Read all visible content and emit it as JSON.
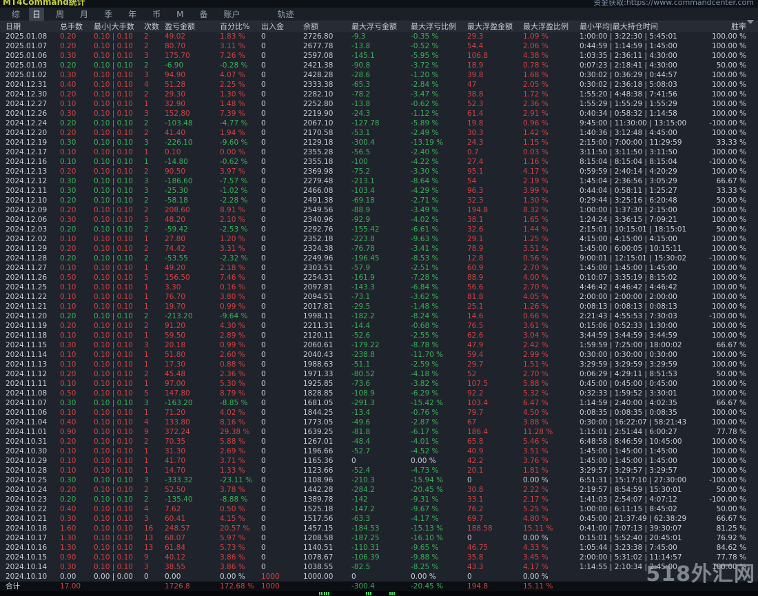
{
  "titlebar": {
    "app_title": "MT4Command统计",
    "data_link": "资金获取:https://www.commandcenter.com"
  },
  "tabs": {
    "items": [
      "综",
      "日",
      "周",
      "月",
      "季",
      "年",
      "币",
      "M",
      "备",
      "账户"
    ],
    "active": "日",
    "track_label": "轨迹"
  },
  "colors": {
    "profit_red": "#d24444",
    "loss_green": "#3bb159",
    "bar_green": "#3fd463"
  },
  "watermark": "518外汇网",
  "table": {
    "columns": [
      {
        "key": "date",
        "label": "日期"
      },
      {
        "key": "lots",
        "label": "总手数"
      },
      {
        "key": "minmax",
        "label": "最小|大手数"
      },
      {
        "key": "count",
        "label": "次数"
      },
      {
        "key": "pl",
        "label": "盈亏金额"
      },
      {
        "key": "pct",
        "label": "百分比%"
      },
      {
        "key": "dep",
        "label": "出入金"
      },
      {
        "key": "bal",
        "label": "余额"
      },
      {
        "key": "fla",
        "label": "最大浮亏金额"
      },
      {
        "key": "flp",
        "label": "最大浮亏比例"
      },
      {
        "key": "fpa",
        "label": "最大浮盈金额"
      },
      {
        "key": "fpp",
        "label": "最大浮盈比例"
      },
      {
        "key": "time",
        "label": "最小平均|最大持仓时间"
      },
      {
        "key": "win",
        "label": "胜率"
      }
    ],
    "rows": [
      [
        "2025.01.08",
        "0.20",
        "0.10 | 0.10",
        "2",
        "49.02",
        "1.83 %",
        "0",
        "2726.80",
        "-9.3",
        "-0.35 %",
        "29.3",
        "1.09 %",
        "1:00:00 | 3:22:30 | 5:45:01",
        "100.00 %"
      ],
      [
        "2025.01.07",
        "0.20",
        "0.10 | 0.10",
        "2",
        "80.70",
        "3.11 %",
        "0",
        "2677.78",
        "-13.8",
        "-0.52 %",
        "54.4",
        "2.06 %",
        "0:44:59 | 1:14:59 | 1:45:00",
        "100.00 %"
      ],
      [
        "2025.01.06",
        "0.30",
        "0.10 | 0.10",
        "3",
        "175.70",
        "7.26 %",
        "0",
        "2597.08",
        "-145.1",
        "-5.95 %",
        "106.8",
        "4.38 %",
        "1:03:35 | 2:36:11 | 4:30:00",
        "100.00 %"
      ],
      [
        "2025.01.03",
        "0.20",
        "0.10 | 0.10",
        "2",
        "-6.90",
        "-0.28 %",
        "0",
        "2421.38",
        "-90.8",
        "-3.72 %",
        "18.9",
        "0.78 %",
        "0:07:23 | 2:18:41 | 4:30:00",
        "50.00 %"
      ],
      [
        "2025.01.02",
        "0.30",
        "0.10 | 0.10",
        "3",
        "94.90",
        "4.07 %",
        "0",
        "2428.28",
        "-28.6",
        "-1.20 %",
        "39.8",
        "1.68 %",
        "0:30:02 | 0:36:29 | 0:44:57",
        "100.00 %"
      ],
      [
        "2024.12.31",
        "0.40",
        "0.10 | 0.10",
        "4",
        "51.28",
        "2.25 %",
        "0",
        "2333.38",
        "-65.3",
        "-2.84 %",
        "47",
        "2.05 %",
        "0:30:02 | 2:36:18 | 5:08:03",
        "100.00 %"
      ],
      [
        "2024.12.30",
        "0.20",
        "0.10 | 0.10",
        "2",
        "29.30",
        "1.30 %",
        "0",
        "2282.10",
        "-78.2",
        "-3.47 %",
        "38.8",
        "1.72 %",
        "1:55:20 | 4:48:38 | 7:41:56",
        "100.00 %"
      ],
      [
        "2024.12.27",
        "0.10",
        "0.10 | 0.10",
        "1",
        "32.90",
        "1.48 %",
        "0",
        "2252.80",
        "-13.8",
        "-0.62 %",
        "52.3",
        "2.36 %",
        "1:55:29 | 1:55:29 | 1:55:29",
        "100.00 %"
      ],
      [
        "2024.12.26",
        "0.30",
        "0.10 | 0.10",
        "3",
        "152.80",
        "7.39 %",
        "0",
        "2219.90",
        "-24.3",
        "-1.12 %",
        "61.4",
        "2.91 %",
        "0:40:34 | 0:58:32 | 1:14:58",
        "100.00 %"
      ],
      [
        "2024.12.24",
        "0.20",
        "0.10 | 0.10",
        "2",
        "-103.48",
        "-4.77 %",
        "0",
        "2067.10",
        "-127.78",
        "-5.89 %",
        "19.8",
        "0.96 %",
        "9:45:00 | 11:30:00 | 13:15:00",
        "-100.00 %"
      ],
      [
        "2024.12.20",
        "0.20",
        "0.10 | 0.10",
        "2",
        "41.40",
        "1.94 %",
        "0",
        "2170.58",
        "-53.1",
        "-2.49 %",
        "30.3",
        "1.42 %",
        "1:40:36 | 3:12:48 | 4:45:00",
        "100.00 %"
      ],
      [
        "2024.12.19",
        "0.30",
        "0.10 | 0.10",
        "3",
        "-226.10",
        "-9.60 %",
        "0",
        "2129.18",
        "-300.4",
        "-13.19 %",
        "24.3",
        "1.15 %",
        "2:15:00 | 7:00:00 | 11:29:59",
        "33.33 %"
      ],
      [
        "2024.12.17",
        "0.10",
        "0.10 | 0.10",
        "1",
        "0.10",
        "0.00 %",
        "0",
        "2355.28",
        "-56.5",
        "-2.40 %",
        "0.7",
        "0.03 %",
        "3:11:50 | 3:11:50 | 3:11:50",
        "100.00 %"
      ],
      [
        "2024.12.16",
        "0.10",
        "0.10 | 0.10",
        "1",
        "-14.80",
        "-0.62 %",
        "0",
        "2355.18",
        "-100",
        "-4.22 %",
        "27.4",
        "1.16 %",
        "8:15:04 | 8:15:04 | 8:15:04",
        "-100.00 %"
      ],
      [
        "2024.12.13",
        "0.20",
        "0.10 | 0.10",
        "2",
        "90.50",
        "3.97 %",
        "0",
        "2369.98",
        "-75.2",
        "-3.30 %",
        "95.1",
        "4.17 %",
        "0:59:59 | 2:40:14 | 4:20:29",
        "100.00 %"
      ],
      [
        "2024.12.12",
        "0.30",
        "0.10 | 0.10",
        "3",
        "-186.60",
        "-7.57 %",
        "0",
        "2279.48",
        "-213.1",
        "-8.64 %",
        "54",
        "2.19 %",
        "1:45:04 | 2:36:56 | 3:05:29",
        "66.67 %"
      ],
      [
        "2024.12.11",
        "0.30",
        "0.10 | 0.10",
        "3",
        "-25.30",
        "-1.02 %",
        "0",
        "2466.08",
        "-103.4",
        "-4.29 %",
        "96.3",
        "3.99 %",
        "0:44:04 | 0:58:11 | 1:25:27",
        "33.33 %"
      ],
      [
        "2024.12.10",
        "0.20",
        "0.10 | 0.10",
        "2",
        "-58.18",
        "-2.28 %",
        "0",
        "2491.38",
        "-69.18",
        "-2.71 %",
        "32.3",
        "1.30 %",
        "0:29:44 | 3:25:16 | 6:20:48",
        "50.00 %"
      ],
      [
        "2024.12.09",
        "0.20",
        "0.10 | 0.10",
        "2",
        "208.60",
        "8.91 %",
        "0",
        "2549.56",
        "-88.9",
        "-3.49 %",
        "194.8",
        "8.32 %",
        "1:00:00 | 1:37:30 | 2:15:00",
        "100.00 %"
      ],
      [
        "2024.12.06",
        "0.30",
        "0.10 | 0.10",
        "3",
        "48.20",
        "2.10 %",
        "0",
        "2340.96",
        "-92.9",
        "-4.02 %",
        "38.1",
        "1.65 %",
        "1:24:24 | 3:36:15 | 7:09:21",
        "100.00 %"
      ],
      [
        "2024.12.03",
        "0.20",
        "0.10 | 0.10",
        "2",
        "-59.42",
        "-2.53 %",
        "0",
        "2292.76",
        "-155.42",
        "-6.61 %",
        "32.6",
        "1.44 %",
        "2:15:01 | 10:15:01 | 18:15:01",
        "50.00 %"
      ],
      [
        "2024.12.02",
        "0.10",
        "0.10 | 0.10",
        "1",
        "27.80",
        "1.20 %",
        "0",
        "2352.18",
        "-223.8",
        "-9.63 %",
        "29.1",
        "1.25 %",
        "4:15:00 | 4:15:00 | 4:15:00",
        "100.00 %"
      ],
      [
        "2024.11.29",
        "0.20",
        "0.10 | 0.10",
        "2",
        "74.42",
        "3.31 %",
        "0",
        "2324.38",
        "-76.78",
        "-3.41 %",
        "78.9",
        "3.51 %",
        "1:45:00 | 6:00:05 | 10:15:11",
        "100.00 %"
      ],
      [
        "2024.11.28",
        "0.20",
        "0.10 | 0.10",
        "2",
        "-53.55",
        "-2.32 %",
        "0",
        "2249.96",
        "-196.45",
        "-8.53 %",
        "12.8",
        "0.56 %",
        "9:00:01 | 12:15:01 | 15:30:02",
        "-100.00 %"
      ],
      [
        "2024.11.27",
        "0.10",
        "0.10 | 0.10",
        "1",
        "49.20",
        "2.18 %",
        "0",
        "2303.51",
        "-57.9",
        "-2.51 %",
        "60.9",
        "2.70 %",
        "1:45:00 | 1:45:00 | 1:45:00",
        "100.00 %"
      ],
      [
        "2024.11.26",
        "0.50",
        "0.10 | 0.10",
        "5",
        "156.50",
        "7.46 %",
        "0",
        "2254.31",
        "-161.9",
        "-7.28 %",
        "88.9",
        "4.00 %",
        "0:10:07 | 3:35:19 | 8:15:02",
        "100.00 %"
      ],
      [
        "2024.11.25",
        "0.10",
        "0.10 | 0.10",
        "1",
        "3.30",
        "0.16 %",
        "0",
        "2097.81",
        "-143.3",
        "-6.84 %",
        "56.6",
        "2.70 %",
        "4:46:42 | 4:46:42 | 4:46:42",
        "100.00 %"
      ],
      [
        "2024.11.22",
        "0.10",
        "0.10 | 0.10",
        "1",
        "76.70",
        "3.80 %",
        "0",
        "2094.51",
        "-73.1",
        "-3.62 %",
        "81.8",
        "4.05 %",
        "2:00:00 | 2:00:00 | 2:00:00",
        "100.00 %"
      ],
      [
        "2024.11.21",
        "0.10",
        "0.10 | 0.10",
        "1",
        "19.70",
        "0.99 %",
        "0",
        "2017.81",
        "-29.5",
        "-1.48 %",
        "25.1",
        "1.26 %",
        "0:08:13 | 0:08:13 | 0:08:13",
        "100.00 %"
      ],
      [
        "2024.11.20",
        "0.20",
        "0.10 | 0.10",
        "2",
        "-213.20",
        "-9.64 %",
        "0",
        "1998.11",
        "-182.2",
        "-8.24 %",
        "14.6",
        "0.66 %",
        "2:21:43 | 4:55:53 | 7:30:03",
        "-100.00 %"
      ],
      [
        "2024.11.19",
        "0.20",
        "0.10 | 0.10",
        "2",
        "91.20",
        "4.30 %",
        "0",
        "2211.31",
        "-14.4",
        "-0.68 %",
        "76.5",
        "3.61 %",
        "0:15:06 | 0:52:33 | 1:30:00",
        "100.00 %"
      ],
      [
        "2024.11.18",
        "0.10",
        "0.10 | 0.10",
        "1",
        "59.50",
        "2.89 %",
        "0",
        "2120.11",
        "-52.6",
        "-2.55 %",
        "62.6",
        "3.04 %",
        "3:44:59 | 3:44:59 | 3:44:59",
        "100.00 %"
      ],
      [
        "2024.11.15",
        "0.30",
        "0.10 | 0.10",
        "3",
        "20.18",
        "0.99 %",
        "0",
        "2060.61",
        "-179.22",
        "-8.78 %",
        "47.9",
        "2.42 %",
        "1:59:59 | 7:25:00 | 18:00:02",
        "66.67 %"
      ],
      [
        "2024.11.14",
        "0.10",
        "0.10 | 0.10",
        "1",
        "51.80",
        "2.60 %",
        "0",
        "2040.43",
        "-238.8",
        "-11.70 %",
        "59.4",
        "2.99 %",
        "0:30:00 | 0:30:00 | 0:30:00",
        "100.00 %"
      ],
      [
        "2024.11.13",
        "0.10",
        "0.10 | 0.10",
        "1",
        "17.30",
        "0.88 %",
        "0",
        "1988.63",
        "-51.1",
        "-2.59 %",
        "29.7",
        "1.51 %",
        "3:29:59 | 3:29:59 | 3:29:59",
        "100.00 %"
      ],
      [
        "2024.11.12",
        "0.20",
        "0.10 | 0.10",
        "2",
        "45.48",
        "2.36 %",
        "0",
        "1971.33",
        "-80.52",
        "-4.18 %",
        "52",
        "2.70 %",
        "0:06:29 | 4:29:11 | 8:51:53",
        "50.00 %"
      ],
      [
        "2024.11.11",
        "0.10",
        "0.10 | 0.10",
        "1",
        "97.00",
        "5.30 %",
        "0",
        "1925.85",
        "-73.6",
        "-3.82 %",
        "107.5",
        "5.88 %",
        "0:45:00 | 0:45:00 | 0:45:00",
        "100.00 %"
      ],
      [
        "2024.11.08",
        "0.50",
        "0.10 | 0.10",
        "5",
        "147.80",
        "8.79 %",
        "0",
        "1828.85",
        "-108.9",
        "-6.29 %",
        "92.2",
        "5.32 %",
        "0:32:33 | 1:59:52 | 3:30:01",
        "100.00 %"
      ],
      [
        "2024.11.07",
        "0.30",
        "0.10 | 0.10",
        "3",
        "-163.20",
        "-8.85 %",
        "0",
        "1681.05",
        "-291.3",
        "-15.42 %",
        "103.4",
        "6.47 %",
        "1:14:59 | 2:40:00 | 4:02:35",
        "66.67 %"
      ],
      [
        "2024.11.06",
        "0.10",
        "0.10 | 0.10",
        "1",
        "71.20",
        "4.02 %",
        "0",
        "1844.25",
        "-13.4",
        "-0.76 %",
        "79.7",
        "4.50 %",
        "0:08:35 | 0:08:35 | 0:08:35",
        "100.00 %"
      ],
      [
        "2024.11.04",
        "0.40",
        "0.10 | 0.10",
        "4",
        "133.80",
        "8.16 %",
        "0",
        "1773.05",
        "-49.6",
        "-2.87 %",
        "67",
        "3.88 %",
        "0:30:00 | 16:22:07 | 58:21:43",
        "100.00 %"
      ],
      [
        "2024.11.01",
        "0.90",
        "0.10 | 0.10",
        "9",
        "372.24",
        "29.38 %",
        "0",
        "1639.25",
        "-81.8",
        "-6.17 %",
        "186.4",
        "11.28 %",
        "1:15:01 | 2:51:44 | 6:00:27",
        "77.78 %"
      ],
      [
        "2024.10.31",
        "0.20",
        "0.10 | 0.10",
        "2",
        "70.35",
        "5.88 %",
        "0",
        "1267.01",
        "-48.4",
        "-4.01 %",
        "65.8",
        "5.46 %",
        "6:48:58 | 8:46:59 | 10:45:00",
        "100.00 %"
      ],
      [
        "2024.10.30",
        "0.10",
        "0.10 | 0.10",
        "1",
        "31.30",
        "2.69 %",
        "0",
        "1196.66",
        "-52.7",
        "-4.52 %",
        "40.9",
        "3.51 %",
        "1:45:00 | 1:45:00 | 1:45:00",
        "100.00 %"
      ],
      [
        "2024.10.29",
        "0.10",
        "0.10 | 0.10",
        "1",
        "41.70",
        "3.71 %",
        "0",
        "1165.36",
        "0",
        "0.00 %",
        "42.2",
        "3.76 %",
        "1:45:00 | 1:45:00 | 1:45:00",
        "100.00 %"
      ],
      [
        "2024.10.28",
        "0.10",
        "0.10 | 0.10",
        "1",
        "14.70",
        "1.33 %",
        "0",
        "1123.66",
        "-52.4",
        "-4.73 %",
        "20.1",
        "1.81 %",
        "3:29:57 | 3:29:57 | 3:29:57",
        "100.00 %"
      ],
      [
        "2024.10.25",
        "0.30",
        "0.10 | 0.10",
        "3",
        "-333.32",
        "-23.11 %",
        "0",
        "1108.96",
        "-210.3",
        "-15.94 %",
        "0",
        "0.00 %",
        "6:51:31 | 15:17:10 | 27:30:00",
        "-100.00 %"
      ],
      [
        "2024.10.24",
        "0.20",
        "0.10 | 0.10",
        "2",
        "52.50",
        "3.78 %",
        "0",
        "1442.28",
        "-284.2",
        "-20.45 %",
        "30.8",
        "2.22 %",
        "2:19:57 | 8:54:59 | 15:30:01",
        "50.00 %"
      ],
      [
        "2024.10.23",
        "0.20",
        "0.10 | 0.10",
        "2",
        "-135.40",
        "-8.88 %",
        "0",
        "1389.78",
        "-142",
        "-9.31 %",
        "33.1",
        "2.17 %",
        "1:41:03 | 2:54:07 | 4:07:12",
        "-100.00 %"
      ],
      [
        "2024.10.22",
        "0.40",
        "0.10 | 0.10",
        "4",
        "7.62",
        "0.50 %",
        "0",
        "1525.18",
        "-147.2",
        "-9.67 %",
        "76.2",
        "5.25 %",
        "1:00:00 | 6:11:15 | 8:45:02",
        "50.00 %"
      ],
      [
        "2024.10.21",
        "0.30",
        "0.10 | 0.10",
        "3",
        "60.41",
        "4.15 %",
        "0",
        "1517.56",
        "-63.3",
        "-4.17 %",
        "69.7",
        "4.80 %",
        "0:45:00 | 21:37:49 | 62:38:29",
        "66.67 %"
      ],
      [
        "2024.10.18",
        "1.60",
        "0.10 | 0.10",
        "16",
        "248.57",
        "20.57 %",
        "0",
        "1457.15",
        "-184.53",
        "-15.13 %",
        "188.58",
        "15.11 %",
        "0:41:00 | 7:07:13 | 39:30:07",
        "81.25 %"
      ],
      [
        "2024.10.17",
        "1.30",
        "0.10 | 0.10",
        "13",
        "68.07",
        "5.97 %",
        "0",
        "1208.58",
        "-187.25",
        "-16.10 %",
        "0",
        "0.00 %",
        "0:15:01 | 5:52:40 | 20:45:01",
        "76.92 %"
      ],
      [
        "2024.10.16",
        "1.30",
        "0.10 | 0.10",
        "13",
        "61.84",
        "5.73 %",
        "0",
        "1140.51",
        "-110.31",
        "-9.65 %",
        "46.75",
        "4.33 %",
        "1:05:44 | 3:23:38 | 7:45:00",
        "84.62 %"
      ],
      [
        "2024.10.15",
        "0.90",
        "0.10 | 0.10",
        "9",
        "40.12",
        "3.86 %",
        "0",
        "1078.67",
        "-106.39",
        "-9.88 %",
        "35.8",
        "3.45 %",
        "2:00:00 | 5:31:02 | 11:14:57",
        "77.78 %"
      ],
      [
        "2024.10.14",
        "0.30",
        "0.10 | 0.10",
        "3",
        "38.55",
        "3.86 %",
        "0",
        "1038.55",
        "-82.5",
        "-8.25 %",
        "43.3",
        "4.17 %",
        "1:14:55 | 2:10:34 | 2:45:00",
        "100.00 %"
      ],
      [
        "2024.10.10",
        "0.00",
        "0.00 | 0.00",
        "0",
        "0.00",
        "0.00 %",
        "1000",
        "1000.00",
        "0",
        "0.00 %",
        "0",
        "0.00 %",
        "",
        ""
      ]
    ],
    "total_row": [
      "合计",
      "17.00",
      "",
      "",
      "1726.8",
      "172.68 %",
      "1000",
      "",
      "-300.4",
      "-20.45 %",
      "194.8",
      "15.11 %",
      "",
      ""
    ]
  },
  "bottom_strip": {
    "tick_clusters": [
      [
        463,
        466,
        470,
        473,
        476
      ],
      [
        531,
        534,
        537
      ],
      [
        565,
        568,
        571
      ]
    ]
  }
}
